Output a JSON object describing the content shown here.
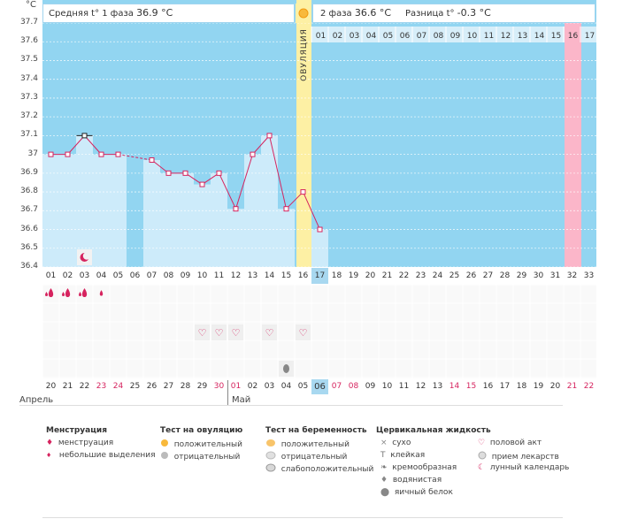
{
  "y_unit": "°C",
  "y_ticks": [
    "37.7",
    "37.6",
    "37.5",
    "37.4",
    "37.3",
    "37.2",
    "37.1",
    "37",
    "36.9",
    "36.8",
    "36.7",
    "36.6",
    "36.5",
    "36.4"
  ],
  "header": {
    "phase1_label": "Средняя t° 1 фаза",
    "phase1_value": "36.9 °C",
    "phase2_label": "2 фаза",
    "phase2_value": "36.6 °C",
    "diff_label": "Разница t°",
    "diff_value": "-0.3 °C"
  },
  "ovulation_label": "ОВУЛЯЦИЯ",
  "phase2_days": [
    "01",
    "02",
    "03",
    "04",
    "05",
    "06",
    "07",
    "08",
    "09",
    "10",
    "11",
    "12",
    "13",
    "14",
    "15",
    "16",
    "17"
  ],
  "cycle_days": [
    "01",
    "02",
    "03",
    "04",
    "05",
    "06",
    "07",
    "08",
    "09",
    "10",
    "11",
    "12",
    "13",
    "14",
    "15",
    "16",
    "17",
    "18",
    "19",
    "20",
    "21",
    "22",
    "23",
    "24",
    "25",
    "26",
    "27",
    "28",
    "29",
    "30",
    "31",
    "32",
    "33"
  ],
  "dates": [
    {
      "d": "20",
      "red": false
    },
    {
      "d": "21",
      "red": false
    },
    {
      "d": "22",
      "red": false
    },
    {
      "d": "23",
      "red": true
    },
    {
      "d": "24",
      "red": true
    },
    {
      "d": "25",
      "red": false
    },
    {
      "d": "26",
      "red": false
    },
    {
      "d": "27",
      "red": false
    },
    {
      "d": "28",
      "red": false
    },
    {
      "d": "29",
      "red": false
    },
    {
      "d": "30",
      "red": true
    },
    {
      "d": "01",
      "red": true
    },
    {
      "d": "02",
      "red": false
    },
    {
      "d": "03",
      "red": false
    },
    {
      "d": "04",
      "red": false
    },
    {
      "d": "05",
      "red": false
    },
    {
      "d": "06",
      "red": false
    },
    {
      "d": "07",
      "red": true
    },
    {
      "d": "08",
      "red": true
    },
    {
      "d": "09",
      "red": false
    },
    {
      "d": "10",
      "red": false
    },
    {
      "d": "11",
      "red": false
    },
    {
      "d": "12",
      "red": false
    },
    {
      "d": "13",
      "red": false
    },
    {
      "d": "14",
      "red": true
    },
    {
      "d": "15",
      "red": true
    },
    {
      "d": "16",
      "red": false
    },
    {
      "d": "17",
      "red": false
    },
    {
      "d": "18",
      "red": false
    },
    {
      "d": "19",
      "red": false
    },
    {
      "d": "20",
      "red": false
    },
    {
      "d": "21",
      "red": true
    },
    {
      "d": "22",
      "red": true
    }
  ],
  "months": {
    "april": "Апрель",
    "may": "Май"
  },
  "legend": {
    "menstruation": {
      "title": "Менструация",
      "items": [
        "менструация",
        "небольшие выделения"
      ]
    },
    "ovulation_test": {
      "title": "Тест на овуляцию",
      "items": [
        "положительный",
        "отрицательный"
      ]
    },
    "pregnancy_test": {
      "title": "Тест на беременность",
      "items": [
        "положительный",
        "отрицательный",
        "слабоположительный"
      ]
    },
    "cervical": {
      "title": "Цервикальная жидкость",
      "items": [
        "сухо",
        "клейкая",
        "кремообразная",
        "водянистая",
        "яичный белок"
      ]
    },
    "other": {
      "items": [
        "половой акт",
        "прием лекарств",
        "лунный календарь"
      ]
    }
  },
  "colors": {
    "sky": "#92d5f1",
    "bar": "#cdebfa",
    "ovulation": "#fdf0a4",
    "pink": "#fbb6c9",
    "line": "#d6245f",
    "highlight": "#a8d8f0",
    "today_cell": "#a8d8f0"
  },
  "chart_data": {
    "type": "line",
    "x": [
      "01",
      "02",
      "03",
      "04",
      "05",
      "06",
      "07",
      "08",
      "09",
      "10",
      "11",
      "12",
      "13",
      "14",
      "15",
      "16",
      "17"
    ],
    "values": [
      37.0,
      37.0,
      37.1,
      37.0,
      37.0,
      null,
      36.97,
      36.9,
      36.9,
      36.84,
      36.9,
      36.71,
      37.0,
      37.1,
      36.71,
      36.8,
      36.6
    ],
    "ylim": [
      36.4,
      37.7
    ],
    "ylabel": "°C",
    "ovulation_day": "16",
    "menstruation_days": [
      "01",
      "02",
      "03",
      "04"
    ],
    "intercourse_days": [
      "10",
      "11",
      "12",
      "14",
      "16"
    ]
  }
}
